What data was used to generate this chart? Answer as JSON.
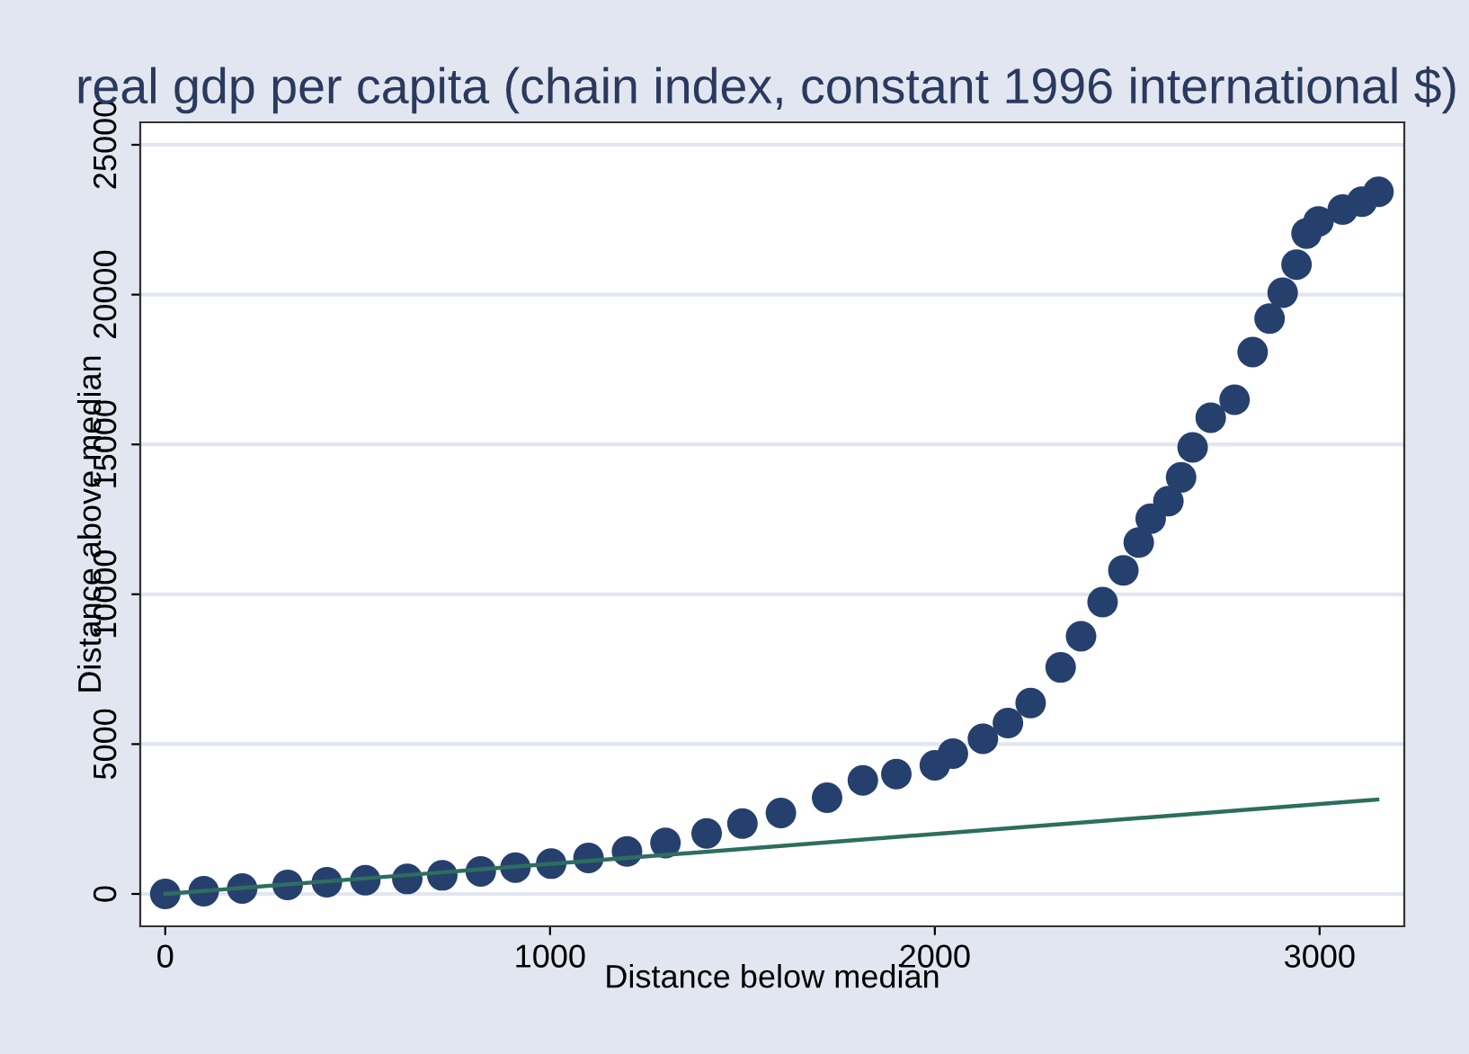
{
  "chart_data": {
    "type": "scatter",
    "title": "real gdp per capita (chain index, constant 1996 international $)",
    "xlabel": "Distance below median",
    "ylabel": "Distance above median",
    "series": [
      {
        "color": "#26406e",
        "marker": "circle",
        "x": [
          0,
          100,
          200,
          318,
          420,
          520,
          629,
          720,
          820,
          910,
          1003,
          1100,
          1200,
          1300,
          1407,
          1500,
          1600,
          1720,
          1813,
          1900,
          2000,
          2047,
          2125,
          2190,
          2249,
          2327,
          2380,
          2436,
          2490,
          2530,
          2561,
          2607,
          2640,
          2670,
          2717,
          2779,
          2826,
          2870,
          2904,
          2940,
          2966,
          2997,
          3030,
          3060,
          3110,
          3153
        ],
        "values": [
          0,
          90,
          180,
          300,
          390,
          460,
          500,
          620,
          750,
          880,
          1010,
          1200,
          1420,
          1700,
          2020,
          2350,
          2700,
          3210,
          3790,
          4000,
          4290,
          4680,
          5180,
          5700,
          6370,
          7560,
          8600,
          9740,
          10800,
          11730,
          12520,
          13110,
          13900,
          14900,
          15890,
          16490,
          18080,
          19200,
          20060,
          21000,
          22040,
          22440,
          null,
          22840,
          23100,
          23430
        ]
      },
      {
        "type": "line",
        "color": "#2d6e5e",
        "x": [
          0,
          3150
        ],
        "values": [
          0,
          3150
        ]
      }
    ],
    "xlim": [
      -65,
      3220
    ],
    "ylim": [
      -1080,
      25750
    ],
    "xticks": [
      0,
      1000,
      2000,
      3000
    ],
    "yticks": [
      0,
      5000,
      10000,
      15000,
      20000,
      25000
    ],
    "grid": "y",
    "legend": false
  }
}
